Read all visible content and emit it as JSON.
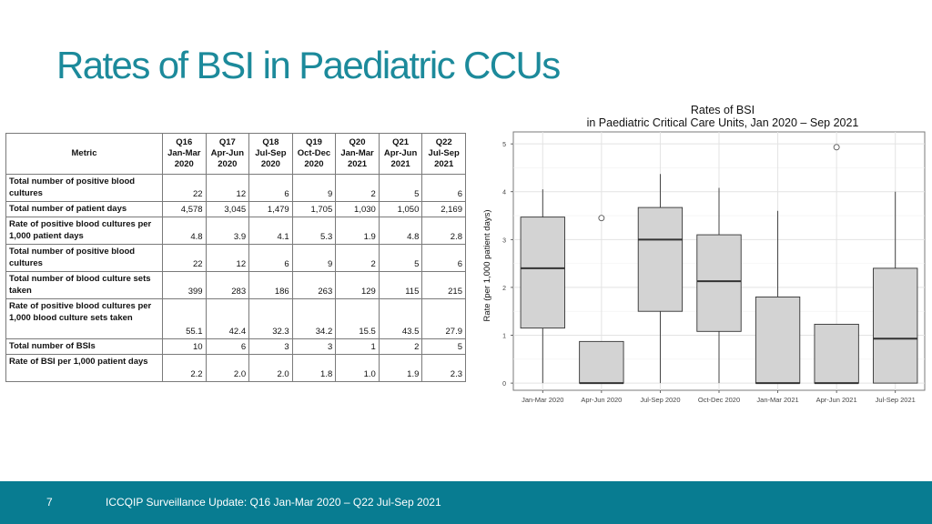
{
  "slide": {
    "title": "Rates of BSI in Paediatric CCUs",
    "page_number": "7",
    "footer_text": "ICCQIP Surveillance Update: Q16 Jan-Mar 2020 – Q22 Jul-Sep 2021",
    "colors": {
      "title": "#1c8a9b",
      "footer_bar": "#087c91",
      "box_fill": "#d3d3d3"
    }
  },
  "table": {
    "metric_header": "Metric",
    "columns": [
      [
        "Q16",
        "Jan-Mar",
        "2020"
      ],
      [
        "Q17",
        "Apr-Jun",
        "2020"
      ],
      [
        "Q18",
        "Jul-Sep",
        "2020"
      ],
      [
        "Q19",
        "Oct-Dec",
        "2020"
      ],
      [
        "Q20",
        "Jan-Mar",
        "2021"
      ],
      [
        "Q21",
        "Apr-Jun",
        "2021"
      ],
      [
        "Q22",
        "Jul-Sep",
        "2021"
      ]
    ],
    "rows": [
      {
        "label": "Total number of positive blood cultures",
        "values": [
          "22",
          "12",
          "6",
          "9",
          "2",
          "5",
          "6"
        ]
      },
      {
        "label": "Total number of patient days",
        "values": [
          "4,578",
          "3,045",
          "1,479",
          "1,705",
          "1,030",
          "1,050",
          "2,169"
        ]
      },
      {
        "label": "Rate of positive blood cultures per 1,000 patient days",
        "values": [
          "4.8",
          "3.9",
          "4.1",
          "5.3",
          "1.9",
          "4.8",
          "2.8"
        ]
      },
      {
        "label": "Total number of positive blood cultures",
        "values": [
          "22",
          "12",
          "6",
          "9",
          "2",
          "5",
          "6"
        ]
      },
      {
        "label": "Total number of blood culture sets taken",
        "values": [
          "399",
          "283",
          "186",
          "263",
          "129",
          "115",
          "215"
        ]
      },
      {
        "label": "Rate of positive blood cultures per 1,000 blood culture sets taken",
        "values": [
          "55.1",
          "42.4",
          "32.3",
          "34.2",
          "15.5",
          "43.5",
          "27.9"
        ]
      },
      {
        "label": "Total number of BSIs",
        "values": [
          "10",
          "6",
          "3",
          "3",
          "1",
          "2",
          "5"
        ]
      },
      {
        "label": "Rate of BSI per 1,000 patient days",
        "values": [
          "2.2",
          "2.0",
          "2.0",
          "1.8",
          "1.0",
          "1.9",
          "2.3"
        ]
      }
    ]
  },
  "chart_data": {
    "type": "box",
    "title": "Rates of BSI",
    "subtitle": "in Paediatric Critical Care Units, Jan 2020 – Sep 2021",
    "xlabel": "",
    "ylabel": "Rate (per 1,000 patient days)",
    "ylim": [
      -0.15,
      5.25
    ],
    "yticks": [
      "0",
      "1",
      "2",
      "3",
      "4",
      "5"
    ],
    "grid": true,
    "categories": [
      "Jan-Mar 2020",
      "Apr-Jun 2020",
      "Jul-Sep 2020",
      "Oct-Dec 2020",
      "Jan-Mar 2021",
      "Apr-Jun 2021",
      "Jul-Sep 2021"
    ],
    "boxes": [
      {
        "min": 0.0,
        "q1": 1.15,
        "median": 2.4,
        "q3": 3.47,
        "max": 4.05,
        "outliers": []
      },
      {
        "min": 0.0,
        "q1": 0.0,
        "median": 0.0,
        "q3": 0.87,
        "max": 0.87,
        "outliers": [
          3.45
        ]
      },
      {
        "min": 0.0,
        "q1": 1.5,
        "median": 3.0,
        "q3": 3.67,
        "max": 4.37,
        "outliers": []
      },
      {
        "min": 0.0,
        "q1": 1.08,
        "median": 2.13,
        "q3": 3.1,
        "max": 4.08,
        "outliers": []
      },
      {
        "min": 0.0,
        "q1": 0.0,
        "median": 0.0,
        "q3": 1.8,
        "max": 3.6,
        "outliers": []
      },
      {
        "min": 0.0,
        "q1": 0.0,
        "median": 0.0,
        "q3": 1.23,
        "max": 1.23,
        "outliers": [
          4.93
        ]
      },
      {
        "min": 0.0,
        "q1": 0.0,
        "median": 0.93,
        "q3": 2.4,
        "max": 4.0,
        "outliers": []
      }
    ]
  }
}
